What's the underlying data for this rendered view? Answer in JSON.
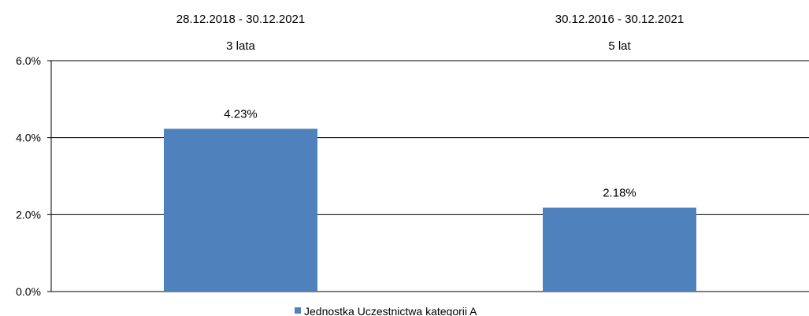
{
  "chart_data": {
    "type": "bar",
    "categories": [
      {
        "period": "28.12.2018 - 30.12.2021",
        "horizon": "3 lata"
      },
      {
        "period": "30.12.2016 - 30.12.2021",
        "horizon": "5 lat"
      }
    ],
    "series": [
      {
        "name": "Jednostka Uczestnictwa kategorii A",
        "values": [
          4.23,
          2.18
        ],
        "value_labels": [
          "4.23%",
          "2.18%"
        ],
        "color": "#4f81bd"
      }
    ],
    "ylim": [
      0,
      6
    ],
    "yticks": [
      0,
      2,
      4,
      6
    ],
    "ytick_labels": [
      "0.0%",
      "2.0%",
      "4.0%",
      "6.0%"
    ],
    "grid": true,
    "legend_position": "bottom"
  }
}
